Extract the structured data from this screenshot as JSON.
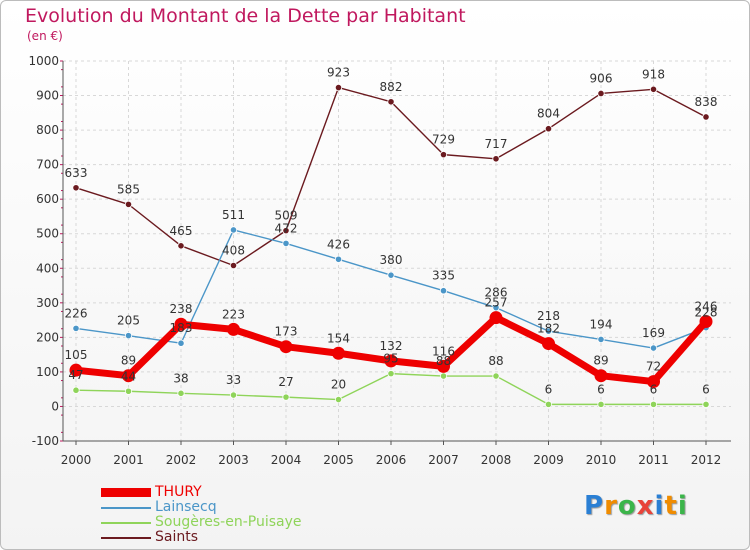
{
  "title": "Evolution du Montant de la Dette par Habitant",
  "unit": "(en €)",
  "brand": "Proxiti",
  "brand_colors": [
    "#2a7fd4",
    "#f08c00",
    "#3bb54a",
    "#e8433a",
    "#2a7fd4",
    "#f08c00",
    "#3bb54a"
  ],
  "chart_data": {
    "type": "line",
    "x": [
      "2000",
      "2001",
      "2002",
      "2003",
      "2004",
      "2005",
      "2006",
      "2007",
      "2008",
      "2009",
      "2010",
      "2011",
      "2012"
    ],
    "ylim": [
      -100,
      1000
    ],
    "yticks": [
      "-100",
      "0",
      "100",
      "200",
      "300",
      "400",
      "500",
      "600",
      "700",
      "800",
      "900",
      "1000"
    ],
    "grid": true,
    "legend_position": "bottom-left",
    "series": [
      {
        "name": "Saints",
        "color": "#6b1a1f",
        "values": [
          633,
          585,
          465,
          408,
          509,
          923,
          882,
          729,
          717,
          804,
          906,
          918,
          838
        ]
      },
      {
        "name": "Lainsecq",
        "color": "#4b96c8",
        "values": [
          226,
          205,
          183,
          511,
          472,
          426,
          380,
          335,
          286,
          218,
          194,
          169,
          228
        ]
      },
      {
        "name": "Sougères-en-Puisaye",
        "color": "#8fd45a",
        "values": [
          47,
          44,
          38,
          33,
          27,
          20,
          95,
          88,
          88,
          6,
          6,
          6,
          6
        ]
      },
      {
        "name": "THURY",
        "color": "#ee0000",
        "values": [
          105,
          89,
          238,
          223,
          173,
          154,
          132,
          116,
          257,
          182,
          89,
          72,
          246
        ]
      }
    ],
    "legend_order": [
      "THURY",
      "Lainsecq",
      "Sougères-en-Puisaye",
      "Saints"
    ]
  }
}
